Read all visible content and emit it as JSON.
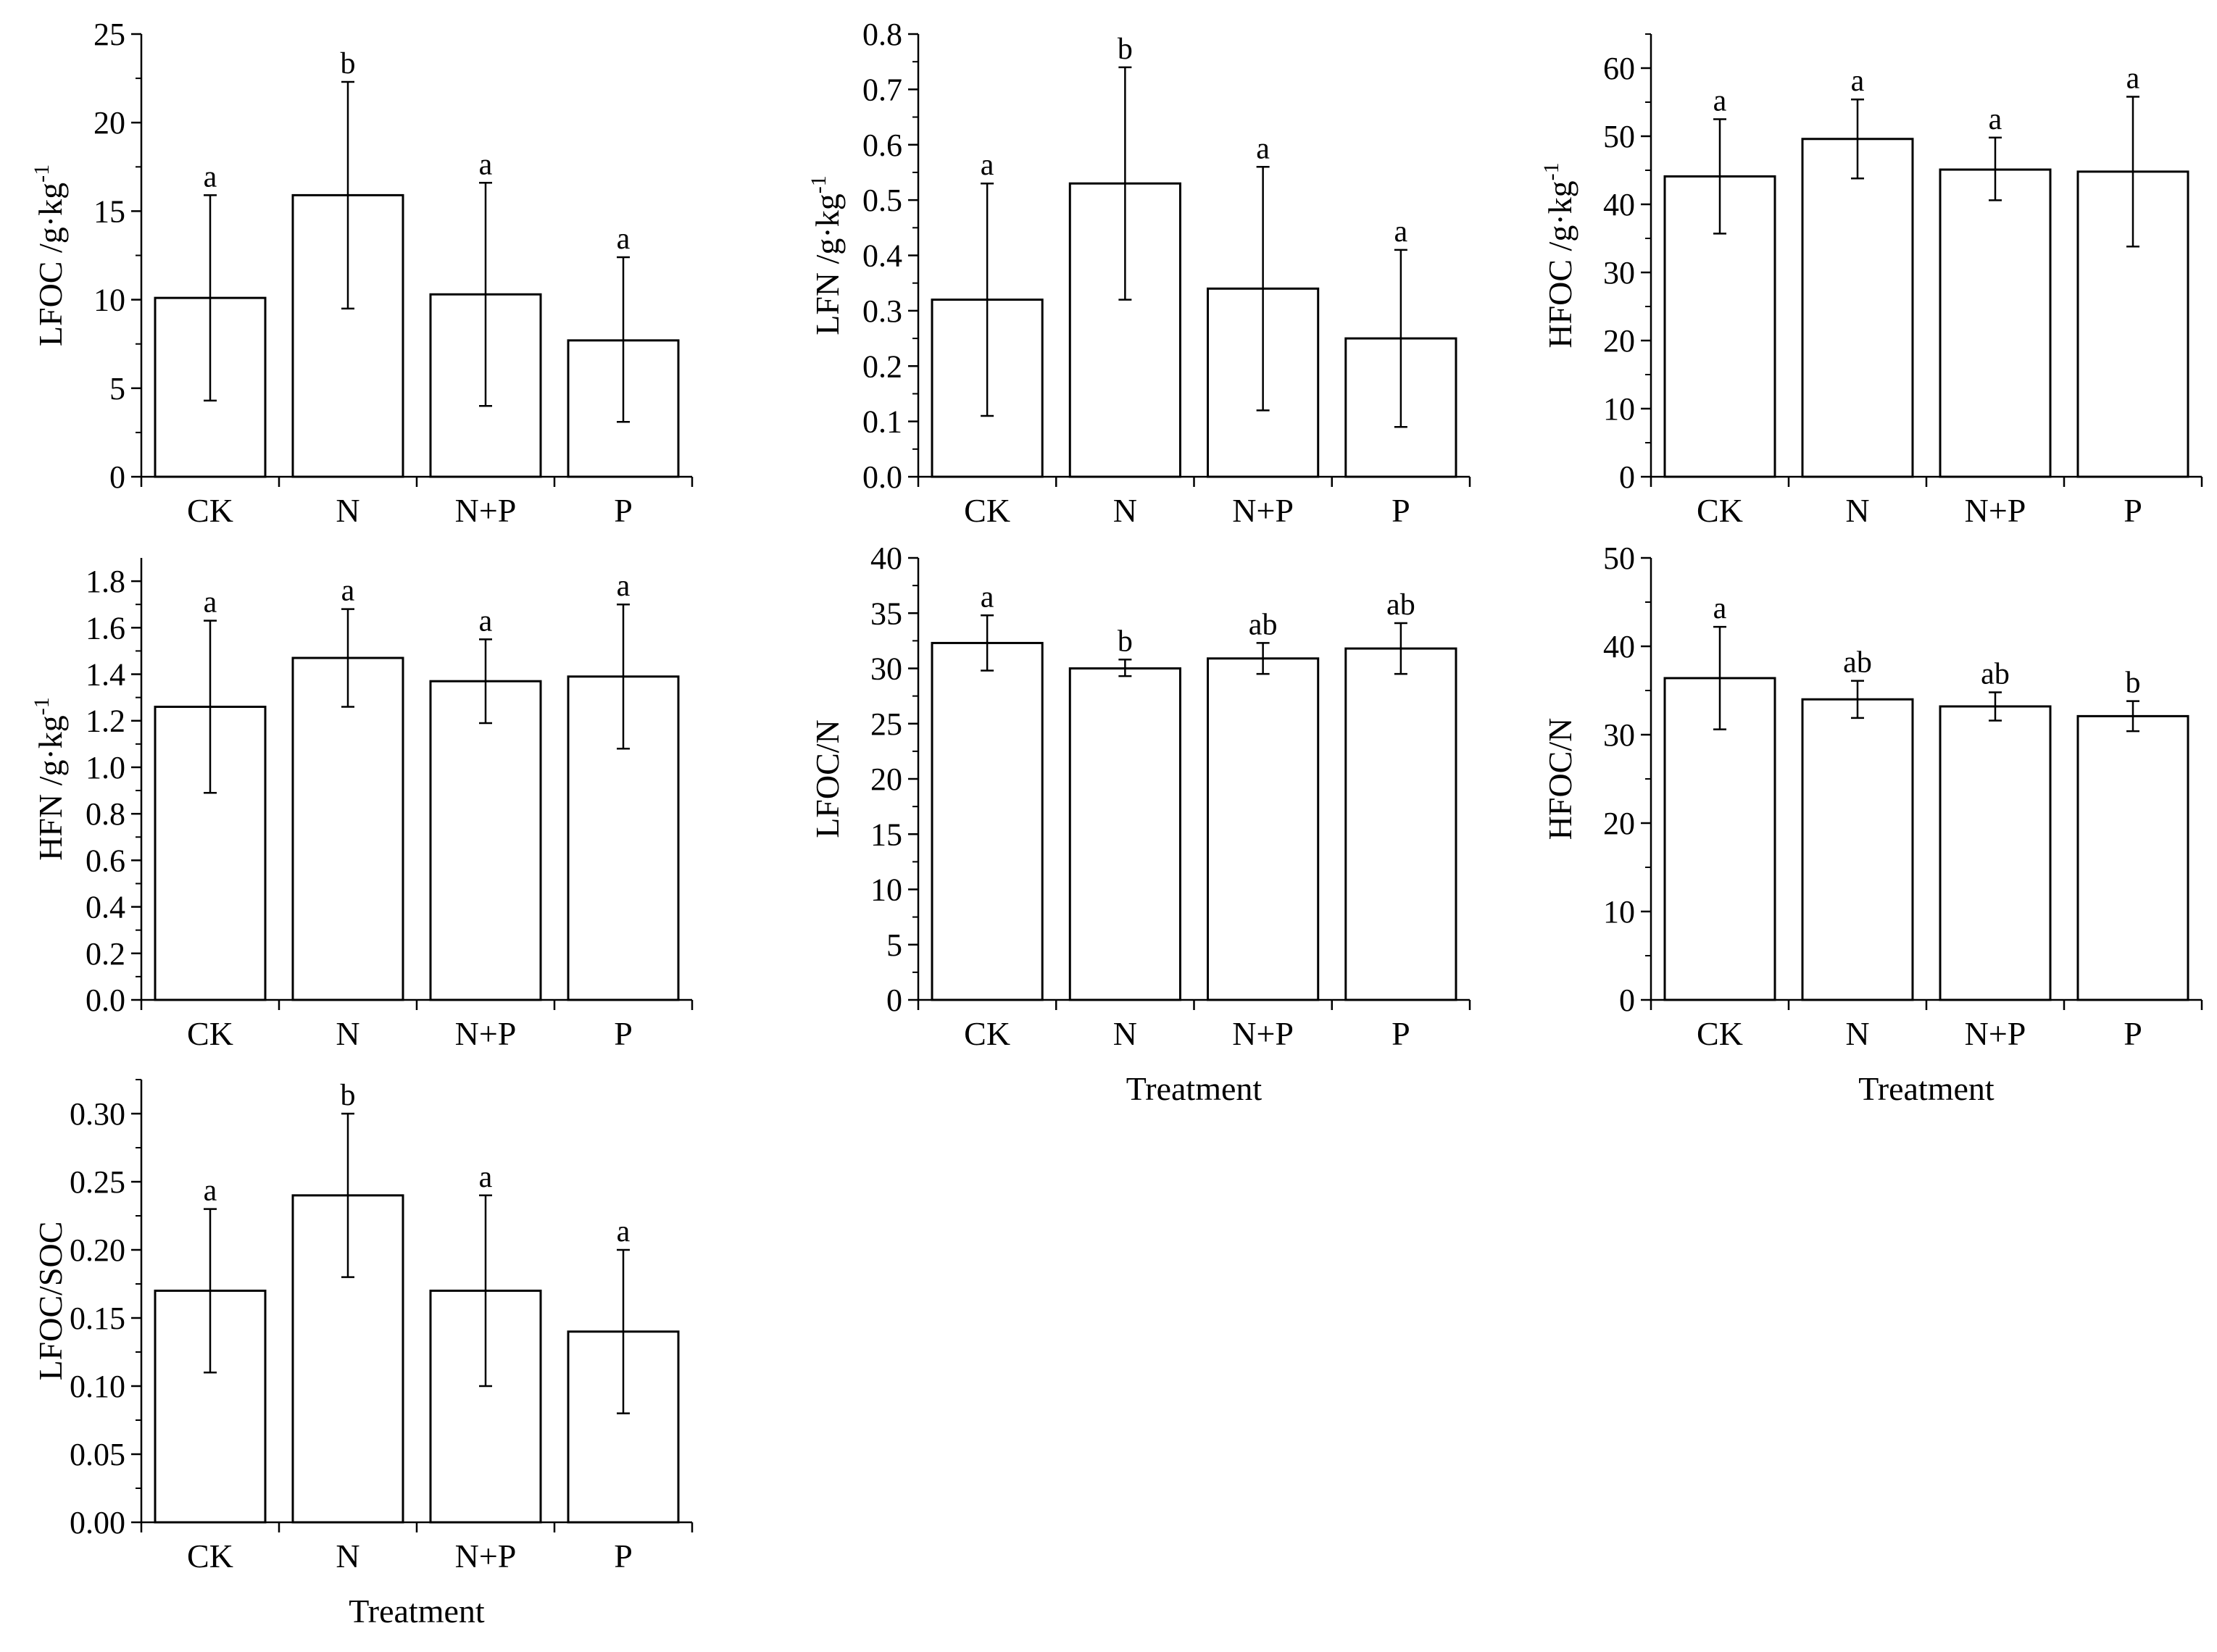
{
  "chart_data": [
    {
      "type": "bar",
      "categories": [
        "CK",
        "N",
        "N+P",
        "P"
      ],
      "values": [
        10.1,
        15.9,
        10.3,
        7.7
      ],
      "error_low": [
        4.3,
        9.5,
        4.0,
        3.1
      ],
      "error_high": [
        15.9,
        22.3,
        16.6,
        12.4
      ],
      "significance": [
        "a",
        "b",
        "a",
        "a"
      ],
      "ylabel": "LFOC /g·kg",
      "ylabel_sup": "-1",
      "xlabel": "",
      "ylim": [
        0,
        25
      ],
      "yticks": [
        "0",
        "5",
        "10",
        "15",
        "20",
        "25"
      ]
    },
    {
      "type": "bar",
      "categories": [
        "CK",
        "N",
        "N+P",
        "P"
      ],
      "values": [
        0.32,
        0.53,
        0.34,
        0.25
      ],
      "error_low": [
        0.11,
        0.32,
        0.12,
        0.09
      ],
      "error_high": [
        0.53,
        0.74,
        0.56,
        0.41
      ],
      "significance": [
        "a",
        "b",
        "a",
        "a"
      ],
      "ylabel": "LFN /g·kg",
      "ylabel_sup": "-1",
      "xlabel": "",
      "ylim": [
        0,
        0.8
      ],
      "yticks": [
        "0.0",
        "0.1",
        "0.2",
        "0.3",
        "0.4",
        "0.5",
        "0.6",
        "0.7",
        "0.8"
      ]
    },
    {
      "type": "bar",
      "categories": [
        "CK",
        "N",
        "N+P",
        "P"
      ],
      "values": [
        44.1,
        49.6,
        45.1,
        44.8
      ],
      "error_low": [
        35.7,
        43.8,
        40.6,
        33.8
      ],
      "error_high": [
        52.5,
        55.4,
        49.8,
        55.8
      ],
      "significance": [
        "a",
        "a",
        "a",
        "a"
      ],
      "ylabel": "HFOC /g·kg",
      "ylabel_sup": "-1",
      "xlabel": "",
      "ylim": [
        0,
        65
      ],
      "yticks": [
        "0",
        "10",
        "20",
        "30",
        "40",
        "50",
        "60"
      ]
    },
    {
      "type": "bar",
      "categories": [
        "CK",
        "N",
        "N+P",
        "P"
      ],
      "values": [
        1.26,
        1.47,
        1.37,
        1.39
      ],
      "error_low": [
        0.89,
        1.26,
        1.19,
        1.08
      ],
      "error_high": [
        1.63,
        1.68,
        1.55,
        1.7
      ],
      "significance": [
        "a",
        "a",
        "a",
        "a"
      ],
      "ylabel": "HFN /g·kg",
      "ylabel_sup": "-1",
      "xlabel": "",
      "ylim": [
        0,
        1.9
      ],
      "yticks": [
        "0.0",
        "0.2",
        "0.4",
        "0.6",
        "0.8",
        "1.0",
        "1.2",
        "1.4",
        "1.6",
        "1.8"
      ]
    },
    {
      "type": "bar",
      "categories": [
        "CK",
        "N",
        "N+P",
        "P"
      ],
      "values": [
        32.3,
        30.0,
        30.9,
        31.8
      ],
      "error_low": [
        29.8,
        29.3,
        29.5,
        29.5
      ],
      "error_high": [
        34.8,
        30.8,
        32.3,
        34.1
      ],
      "significance": [
        "a",
        "b",
        "ab",
        "ab"
      ],
      "ylabel": "LFOC/N",
      "ylabel_sup": "",
      "xlabel": "Treatment",
      "ylim": [
        0,
        40
      ],
      "yticks": [
        "0",
        "5",
        "10",
        "15",
        "20",
        "25",
        "30",
        "35",
        "40"
      ]
    },
    {
      "type": "bar",
      "categories": [
        "CK",
        "N",
        "N+P",
        "P"
      ],
      "values": [
        36.4,
        34.0,
        33.2,
        32.1
      ],
      "error_low": [
        30.6,
        31.9,
        31.6,
        30.4
      ],
      "error_high": [
        42.2,
        36.1,
        34.8,
        33.8
      ],
      "significance": [
        "a",
        "ab",
        "ab",
        "b"
      ],
      "ylabel": "HFOC/N",
      "ylabel_sup": "",
      "xlabel": "Treatment",
      "ylim": [
        0,
        50
      ],
      "yticks": [
        "0",
        "10",
        "20",
        "30",
        "40",
        "50"
      ]
    },
    {
      "type": "bar",
      "categories": [
        "CK",
        "N",
        "N+P",
        "P"
      ],
      "values": [
        0.17,
        0.24,
        0.17,
        0.14
      ],
      "error_low": [
        0.11,
        0.18,
        0.1,
        0.08
      ],
      "error_high": [
        0.23,
        0.3,
        0.24,
        0.2
      ],
      "significance": [
        "a",
        "b",
        "a",
        "a"
      ],
      "ylabel": "LFOC/SOC",
      "ylabel_sup": "",
      "xlabel": "Treatment",
      "ylim": [
        0,
        0.325
      ],
      "yticks": [
        "0.00",
        "0.05",
        "0.10",
        "0.15",
        "0.20",
        "0.25",
        "0.30"
      ]
    }
  ]
}
